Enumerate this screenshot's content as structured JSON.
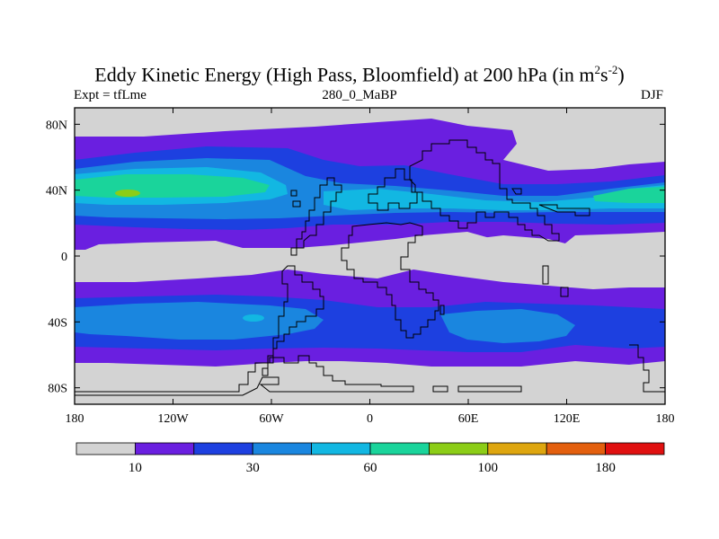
{
  "title": {
    "main": "Eddy Kinetic Energy (High Pass, Bloomfield) at 200 hPa (in m",
    "sup1": "2",
    "mid": "s",
    "sup2": "-2",
    "end": ")"
  },
  "subtitle_left": "Expt = tfLme",
  "subtitle_center": "280_0_MaBP",
  "subtitle_right": "DJF",
  "x_ticks": [
    {
      "label": "180",
      "lon": -180
    },
    {
      "label": "120W",
      "lon": -120
    },
    {
      "label": "60W",
      "lon": -60
    },
    {
      "label": "0",
      "lon": 0
    },
    {
      "label": "60E",
      "lon": 60
    },
    {
      "label": "120E",
      "lon": 120
    },
    {
      "label": "180",
      "lon": 180
    }
  ],
  "y_ticks": [
    {
      "label": "80N",
      "lat": 80
    },
    {
      "label": "40N",
      "lat": 40
    },
    {
      "label": "0",
      "lat": 0
    },
    {
      "label": "40S",
      "lat": -40
    },
    {
      "label": "80S",
      "lat": -80
    }
  ],
  "colorbar": {
    "colors": [
      "#d3d3d3",
      "#6a1fe0",
      "#1d40e0",
      "#1a86df",
      "#12b7e2",
      "#1ad49b",
      "#8ccd17",
      "#dea60f",
      "#e35f0e",
      "#e01010"
    ],
    "labels": [
      {
        "text": "10",
        "after_box": 1
      },
      {
        "text": "30",
        "after_box": 3
      },
      {
        "text": "60",
        "after_box": 5
      },
      {
        "text": "100",
        "after_box": 7
      },
      {
        "text": "180",
        "after_box": 9
      }
    ]
  },
  "colors": {
    "background": "#d3d3d3",
    "level1": "#6a1fe0",
    "level2": "#1d40e0",
    "level3": "#1a86df",
    "level4": "#12b7e2",
    "level5": "#1ad49b",
    "level6": "#8ccd17",
    "coastline": "#000000"
  }
}
